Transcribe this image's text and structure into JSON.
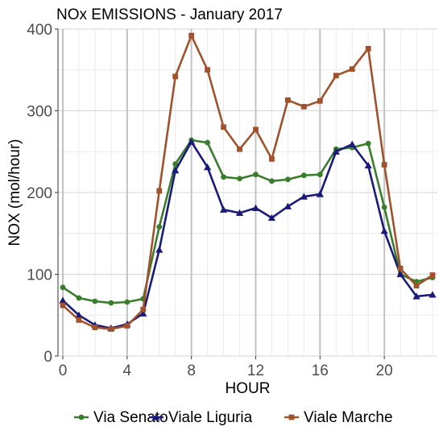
{
  "chart_data": {
    "type": "line",
    "title": "NOx EMISSIONS - January 2017",
    "xlabel": "HOUR",
    "ylabel": "NOX (mol/hour)",
    "xlim": [
      -0.3,
      23.3
    ],
    "ylim": [
      0,
      400
    ],
    "x_ticks": [
      0,
      4,
      8,
      12,
      16,
      20
    ],
    "y_ticks": [
      0,
      100,
      200,
      300,
      400
    ],
    "grid": true,
    "legend_position": "bottom",
    "x": [
      0,
      1,
      2,
      3,
      4,
      5,
      6,
      7,
      8,
      9,
      10,
      11,
      12,
      13,
      14,
      15,
      16,
      17,
      18,
      19,
      20,
      21,
      22,
      23
    ],
    "series": [
      {
        "name": "Via Senato",
        "color": "#3a7d2c",
        "marker": "circle",
        "values": [
          84,
          71,
          67,
          65,
          66,
          70,
          158,
          235,
          264,
          261,
          219,
          217,
          222,
          214,
          216,
          221,
          222,
          253,
          255,
          260,
          182,
          100,
          91,
          96
        ]
      },
      {
        "name": "Viale Liguria",
        "color": "#1a1a7a",
        "marker": "triangle",
        "values": [
          68,
          50,
          38,
          34,
          39,
          52,
          130,
          227,
          262,
          231,
          179,
          175,
          181,
          169,
          183,
          195,
          198,
          250,
          259,
          233,
          153,
          100,
          73,
          75
        ]
      },
      {
        "name": "Viale Marche",
        "color": "#a0522d",
        "marker": "square",
        "values": [
          62,
          44,
          35,
          33,
          37,
          57,
          202,
          342,
          392,
          350,
          280,
          253,
          277,
          241,
          313,
          305,
          312,
          343,
          351,
          376,
          234,
          107,
          86,
          99
        ]
      }
    ]
  }
}
